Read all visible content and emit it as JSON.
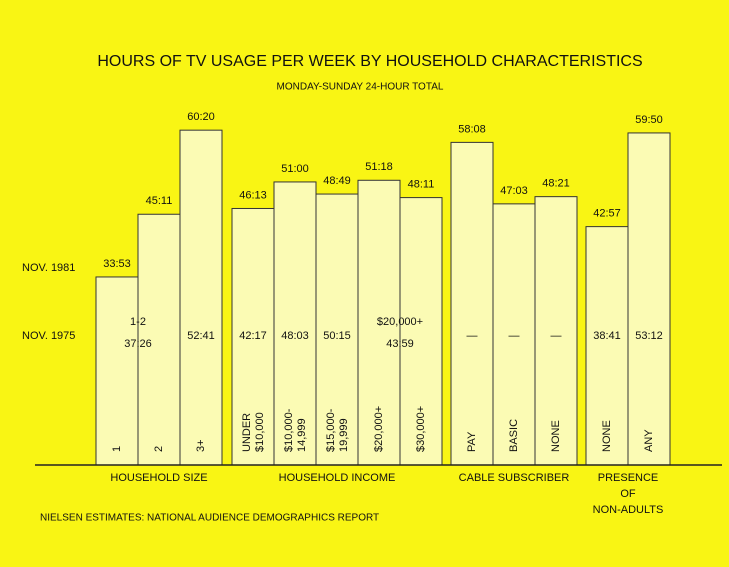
{
  "chart_data": {
    "type": "bar",
    "title": "HOURS OF TV USAGE PER WEEK BY HOUSEHOLD CHARACTERISTICS",
    "subtitle": "MONDAY-SUNDAY  24-HOUR TOTAL",
    "source": "NIELSEN ESTIMATES: NATIONAL AUDIENCE DEMOGRAPHICS REPORT",
    "categories": [
      "1",
      "2",
      "3+",
      "UNDER\n$10,000",
      "$10,000-\n14,999",
      "$15,000-\n19,999",
      "$20,000+",
      "$30,000+",
      "PAY",
      "BASIC",
      "NONE",
      "NONE",
      "ANY"
    ],
    "groups": [
      {
        "label": "HOUSEHOLD SIZE",
        "count": 3
      },
      {
        "label": "HOUSEHOLD INCOME",
        "count": 5
      },
      {
        "label": "CABLE SUBSCRIBER",
        "count": 3
      },
      {
        "label": "PRESENCE\nOF\nNON-ADULTS",
        "count": 2
      }
    ],
    "series": [
      {
        "name": "NOV. 1981",
        "color": "#fbfbb4",
        "values": [
          33.88,
          45.18,
          60.33,
          46.22,
          51,
          48.82,
          51.3,
          48.18,
          58.13,
          47.05,
          48.35,
          42.95,
          59.83
        ],
        "value_labels": [
          "33:53",
          "45:11",
          "60:20",
          "46:13",
          "51:00",
          "48:49",
          "51:18",
          "48:11",
          "58:08",
          "47:03",
          "48:21",
          "42:57",
          "59:50"
        ]
      },
      {
        "name": "NOV. 1975",
        "values": [
          37.43,
          null,
          52.68,
          42.28,
          48.05,
          50.25,
          43.98,
          null,
          null,
          null,
          null,
          38.68,
          53.2
        ],
        "value_labels": [
          "37:26",
          null,
          "52:41",
          "42:17",
          "48:03",
          "50:15",
          "43:59",
          null,
          "—",
          "—",
          "—",
          "38:41",
          "53:12"
        ],
        "prefixes": [
          "1-2",
          null,
          null,
          null,
          null,
          null,
          "$20,000+",
          null,
          null,
          null,
          null,
          null,
          null
        ]
      }
    ]
  }
}
